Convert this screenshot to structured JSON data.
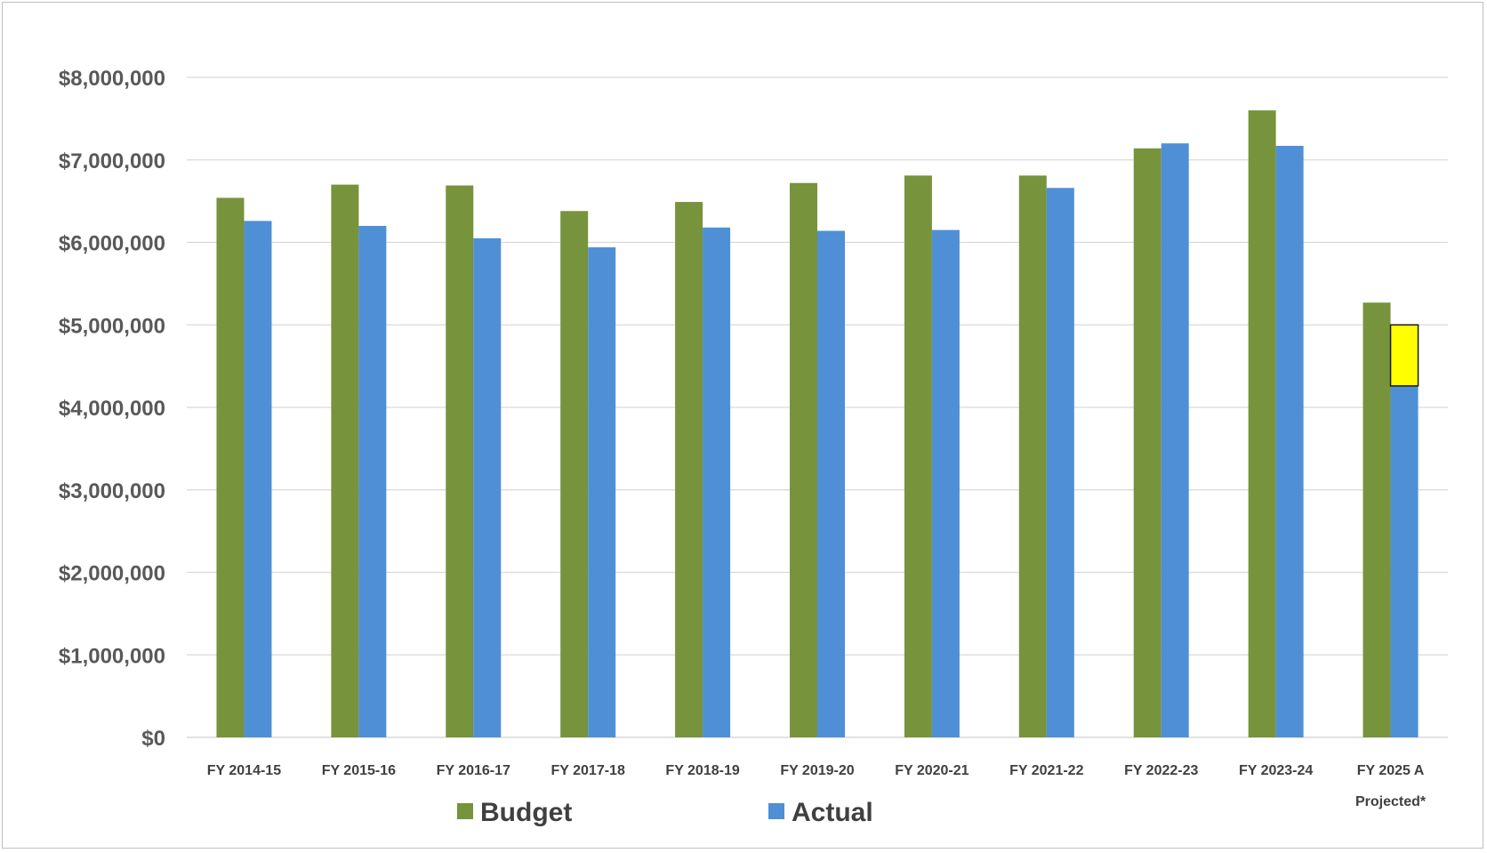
{
  "colors": {
    "budget": "#77933c",
    "actual": "#4f8fd6",
    "highlight": "#ffff00",
    "highlight_border": "#1a1a1a",
    "grid": "#d9d9d9"
  },
  "chart_data": {
    "type": "bar",
    "categories": [
      "FY 2014-15",
      "FY 2015-16",
      "FY 2016-17",
      "FY 2017-18",
      "FY 2018-19",
      "FY 2019-20",
      "FY 2020-21",
      "FY 2021-22",
      "FY 2022-23",
      "FY 2023-24",
      "FY 2025 A Projected*"
    ],
    "category_lines": [
      [
        "FY 2014-15"
      ],
      [
        "FY 2015-16"
      ],
      [
        "FY 2016-17"
      ],
      [
        "FY 2017-18"
      ],
      [
        "FY 2018-19"
      ],
      [
        "FY 2019-20"
      ],
      [
        "FY 2020-21"
      ],
      [
        "FY 2021-22"
      ],
      [
        "FY 2022-23"
      ],
      [
        "FY 2023-24"
      ],
      [
        "FY 2025 A",
        "Projected*"
      ]
    ],
    "series": [
      {
        "name": "Budget",
        "values": [
          6540000,
          6700000,
          6690000,
          6380000,
          6490000,
          6720000,
          6810000,
          6810000,
          7140000,
          7600000,
          5270000
        ]
      },
      {
        "name": "Actual",
        "values": [
          6260000,
          6200000,
          6050000,
          5940000,
          6180000,
          6140000,
          6150000,
          6660000,
          7200000,
          7170000,
          4260000
        ]
      }
    ],
    "projection_box": {
      "category": "FY 2025 A Projected*",
      "from": 4260000,
      "to": 5000000
    },
    "ylim": [
      0,
      8000000
    ],
    "yticks": [
      0,
      1000000,
      2000000,
      3000000,
      4000000,
      5000000,
      6000000,
      7000000,
      8000000
    ],
    "ytick_labels": [
      "$0",
      "$1,000,000",
      "$2,000,000",
      "$3,000,000",
      "$4,000,000",
      "$5,000,000",
      "$6,000,000",
      "$7,000,000",
      "$8,000,000"
    ],
    "grid": true,
    "legend": "bottom-left",
    "title": "",
    "xlabel": "",
    "ylabel": ""
  }
}
